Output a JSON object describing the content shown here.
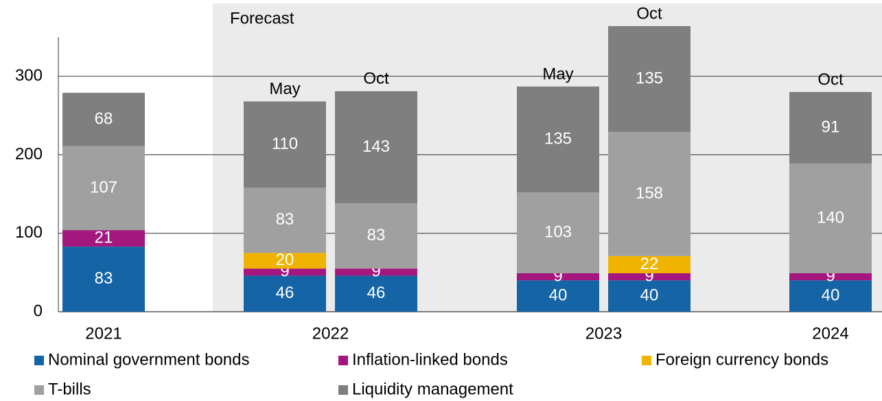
{
  "chart_data": {
    "type": "stacked_bar",
    "annotation": "Forecast",
    "categories": [
      null,
      "May",
      "Oct",
      "May",
      "Oct",
      "Oct"
    ],
    "groups": [
      {
        "label": "2021",
        "bars": [
          0
        ]
      },
      {
        "label": "2022",
        "bars": [
          1,
          2
        ]
      },
      {
        "label": "2023",
        "bars": [
          3,
          4
        ]
      },
      {
        "label": "2024",
        "bars": [
          5
        ]
      }
    ],
    "series": [
      {
        "name": "Nominal government bonds",
        "color": "#1565a6",
        "values": [
          83,
          46,
          46,
          40,
          40,
          40
        ]
      },
      {
        "name": "Inflation-linked bonds",
        "color": "#a3177e",
        "values": [
          21,
          9,
          9,
          9,
          9,
          9
        ]
      },
      {
        "name": "Foreign currency bonds",
        "color": "#f0b400",
        "values": [
          null,
          20,
          null,
          null,
          22,
          null
        ]
      },
      {
        "name": "T-bills",
        "color": "#a0a0a0",
        "values": [
          107,
          83,
          83,
          103,
          158,
          140
        ]
      },
      {
        "name": "Liquidity management",
        "color": "#7f7f7f",
        "values": [
          68,
          110,
          143,
          135,
          135,
          91
        ]
      }
    ],
    "ylim": [
      0,
      350
    ],
    "yticks": [
      0,
      100,
      200,
      300
    ],
    "grid": true
  }
}
